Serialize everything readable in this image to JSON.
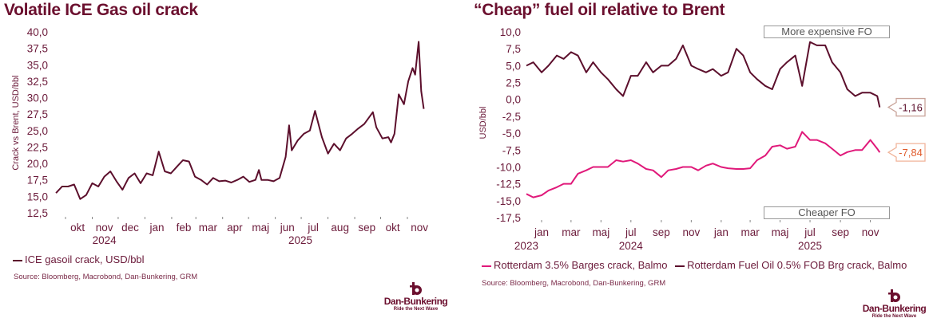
{
  "colors": {
    "gasoil": "#5c0f2c",
    "fo05": "#5c0f2c",
    "hsfo": "#e0197a",
    "title": "#6b0f2e",
    "callout_low": "#e05a2a"
  },
  "logo": {
    "name": "Dan-Bunkering",
    "tagline": "Ride the Next Wave"
  },
  "chart_data": [
    {
      "type": "line",
      "title": "Volatile ICE Gas oil crack",
      "ylabel": "Crack vs Brent, USD/bbl",
      "ylim": [
        12.5,
        40.0
      ],
      "y_ticks": [
        "12,5",
        "15,0",
        "17,5",
        "20,0",
        "22,5",
        "25,0",
        "27,5",
        "30,0",
        "32,5",
        "35,0",
        "37,5",
        "40,0"
      ],
      "x_ticks": [
        {
          "label": "okt",
          "date": "2024-10-15"
        },
        {
          "label": "nov",
          "date": "2024-11-15"
        },
        {
          "label": "dec",
          "date": "2024-12-15"
        },
        {
          "label": "jan",
          "date": "2025-01-15"
        },
        {
          "label": "feb",
          "date": "2025-02-15"
        },
        {
          "label": "mar",
          "date": "2025-03-15"
        },
        {
          "label": "apr",
          "date": "2025-04-15"
        },
        {
          "label": "maj",
          "date": "2025-05-15"
        },
        {
          "label": "jun",
          "date": "2025-06-15"
        },
        {
          "label": "jul",
          "date": "2025-07-15"
        },
        {
          "label": "aug",
          "date": "2025-08-15"
        },
        {
          "label": "sep",
          "date": "2025-09-15"
        },
        {
          "label": "okt",
          "date": "2025-10-15"
        },
        {
          "label": "nov",
          "date": "2025-11-15"
        }
      ],
      "years": [
        {
          "label": "2024",
          "date": "2024-11-15"
        },
        {
          "label": "2025",
          "date": "2025-06-30"
        }
      ],
      "grid": false,
      "legend_position": "bottom-left",
      "series": [
        {
          "name": "ICE gasoil crack, USD/bbl",
          "x": [
            "2024-09-20",
            "2024-09-27",
            "2024-10-04",
            "2024-10-11",
            "2024-10-18",
            "2024-10-25",
            "2024-11-01",
            "2024-11-08",
            "2024-11-15",
            "2024-11-22",
            "2024-11-29",
            "2024-12-06",
            "2024-12-13",
            "2024-12-20",
            "2024-12-27",
            "2025-01-03",
            "2025-01-10",
            "2025-01-17",
            "2025-01-24",
            "2025-01-31",
            "2025-02-07",
            "2025-02-14",
            "2025-02-21",
            "2025-02-28",
            "2025-03-07",
            "2025-03-14",
            "2025-03-21",
            "2025-03-28",
            "2025-04-04",
            "2025-04-11",
            "2025-04-18",
            "2025-04-25",
            "2025-05-02",
            "2025-05-09",
            "2025-05-13",
            "2025-05-16",
            "2025-05-23",
            "2025-05-30",
            "2025-06-06",
            "2025-06-13",
            "2025-06-17",
            "2025-06-20",
            "2025-06-27",
            "2025-07-04",
            "2025-07-11",
            "2025-07-17",
            "2025-07-25",
            "2025-08-01",
            "2025-08-08",
            "2025-08-15",
            "2025-08-22",
            "2025-08-29",
            "2025-09-05",
            "2025-09-12",
            "2025-09-22",
            "2025-09-26",
            "2025-10-03",
            "2025-10-10",
            "2025-10-13",
            "2025-10-17",
            "2025-10-22",
            "2025-10-28",
            "2025-11-02",
            "2025-11-07",
            "2025-11-10",
            "2025-11-14",
            "2025-11-17",
            "2025-11-20"
          ],
          "values": [
            15.5,
            16.5,
            16.5,
            16.8,
            14.6,
            15.2,
            17.0,
            16.5,
            18.0,
            18.8,
            17.3,
            16.0,
            17.8,
            18.5,
            17.0,
            18.5,
            18.2,
            21.8,
            18.8,
            18.5,
            19.5,
            20.5,
            20.3,
            18.0,
            17.5,
            16.8,
            17.8,
            17.3,
            17.4,
            17.1,
            17.5,
            18.0,
            17.2,
            17.5,
            19.0,
            17.5,
            17.5,
            17.3,
            17.8,
            21.0,
            25.8,
            22.0,
            23.5,
            24.5,
            25.0,
            28.0,
            24.0,
            21.5,
            23.0,
            22.0,
            23.8,
            24.5,
            25.3,
            26.0,
            27.8,
            25.5,
            23.8,
            24.0,
            23.2,
            24.5,
            30.5,
            29.0,
            32.5,
            34.5,
            33.5,
            38.5,
            31.0,
            28.3
          ]
        }
      ],
      "source": "Source: Bloomberg, Macrobond, Dan-Bunkering, GRM"
    },
    {
      "type": "line",
      "title": "“Cheap” fuel oil relative to Brent",
      "ylabel": "USD/bbl",
      "ylim": [
        -17.5,
        10.0
      ],
      "y_ticks": [
        "-17,5",
        "-15,0",
        "-12,5",
        "-10,0",
        "-7,5",
        "-5,0",
        "-2,5",
        "0,0",
        "2,5",
        "5,0",
        "7,5",
        "10,0"
      ],
      "x_ticks": [
        {
          "label": "jan",
          "date": "2024-01-01"
        },
        {
          "label": "mar",
          "date": "2024-03-01"
        },
        {
          "label": "maj",
          "date": "2024-05-01"
        },
        {
          "label": "jul",
          "date": "2024-07-01"
        },
        {
          "label": "sep",
          "date": "2024-09-01"
        },
        {
          "label": "nov",
          "date": "2024-11-01"
        },
        {
          "label": "jan",
          "date": "2025-01-01"
        },
        {
          "label": "mar",
          "date": "2025-03-01"
        },
        {
          "label": "maj",
          "date": "2025-05-01"
        },
        {
          "label": "jul",
          "date": "2025-07-01"
        },
        {
          "label": "sep",
          "date": "2025-09-01"
        },
        {
          "label": "nov",
          "date": "2025-11-01"
        }
      ],
      "years": [
        {
          "label": "2023",
          "date": "2023-12-01"
        },
        {
          "label": "2024",
          "date": "2024-07-01"
        },
        {
          "label": "2025",
          "date": "2025-07-01"
        }
      ],
      "annotations": {
        "top": "More expensive FO",
        "bottom": "Cheaper FO"
      },
      "last_values": {
        "fo05": "-1,16",
        "hsfo": "-7,84"
      },
      "grid": false,
      "legend_position": "bottom",
      "x": [
        "2023-12-01",
        "2023-12-15",
        "2024-01-01",
        "2024-01-15",
        "2024-02-01",
        "2024-02-15",
        "2024-03-01",
        "2024-03-15",
        "2024-04-01",
        "2024-04-15",
        "2024-05-01",
        "2024-05-15",
        "2024-06-01",
        "2024-06-15",
        "2024-07-01",
        "2024-07-15",
        "2024-08-01",
        "2024-08-15",
        "2024-09-01",
        "2024-09-15",
        "2024-10-01",
        "2024-10-15",
        "2024-11-01",
        "2024-11-15",
        "2024-12-01",
        "2024-12-15",
        "2025-01-01",
        "2025-01-15",
        "2025-02-01",
        "2025-02-15",
        "2025-03-01",
        "2025-03-15",
        "2025-04-01",
        "2025-04-15",
        "2025-05-01",
        "2025-05-15",
        "2025-06-01",
        "2025-06-15",
        "2025-07-01",
        "2025-07-15",
        "2025-08-01",
        "2025-08-15",
        "2025-09-01",
        "2025-09-15",
        "2025-10-01",
        "2025-10-15",
        "2025-11-01",
        "2025-11-15",
        "2025-11-20"
      ],
      "series": [
        {
          "name": "Rotterdam 3.5% Barges crack, Balmo",
          "key": "hsfo",
          "values": [
            -14.0,
            -14.5,
            -14.2,
            -13.5,
            -13.0,
            -12.5,
            -12.5,
            -11.0,
            -10.5,
            -10.0,
            -10.0,
            -10.0,
            -9.0,
            -9.2,
            -9.0,
            -9.5,
            -10.3,
            -10.5,
            -11.5,
            -10.5,
            -10.3,
            -10.0,
            -10.0,
            -10.5,
            -9.8,
            -9.5,
            -10.0,
            -10.2,
            -10.3,
            -10.3,
            -10.2,
            -9.0,
            -8.3,
            -7.0,
            -6.8,
            -7.3,
            -7.0,
            -4.8,
            -6.0,
            -6.0,
            -6.5,
            -7.3,
            -8.3,
            -7.8,
            -7.5,
            -7.5,
            -6.0,
            -7.3,
            -7.84
          ]
        },
        {
          "name": "Rotterdam Fuel Oil 0.5% FOB Brg crack, Balmo",
          "key": "fo05",
          "values": [
            5.0,
            5.5,
            4.0,
            5.0,
            6.5,
            6.0,
            7.0,
            6.5,
            4.0,
            5.5,
            4.0,
            3.0,
            1.5,
            0.5,
            3.5,
            3.5,
            5.5,
            4.0,
            5.0,
            5.0,
            6.0,
            8.0,
            5.0,
            4.5,
            4.0,
            4.5,
            3.5,
            4.0,
            7.5,
            6.5,
            4.0,
            3.0,
            2.0,
            1.5,
            4.5,
            5.5,
            6.5,
            2.0,
            8.5,
            8.0,
            8.0,
            5.5,
            4.0,
            1.5,
            0.5,
            1.0,
            1.0,
            0.5,
            -1.16
          ]
        }
      ],
      "source": "Source: Bloomberg, Macrobond, Dan-Bunkering, GRM"
    }
  ]
}
